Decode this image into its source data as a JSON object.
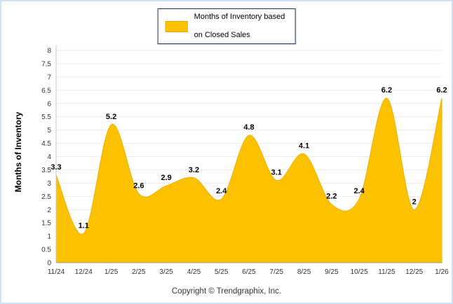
{
  "legend": {
    "line1": "Months of Inventory based",
    "line2": "on Closed Sales"
  },
  "footer": "Copyright © Trendgraphix, Inc.",
  "chart_data": {
    "type": "area",
    "title": "Months of Inventory based on Closed Sales",
    "xlabel": "",
    "ylabel": "Months of Inventory",
    "categories": [
      "11/24",
      "12/24",
      "1/25",
      "2/25",
      "3/25",
      "4/25",
      "5/25",
      "6/25",
      "7/25",
      "8/25",
      "9/25",
      "10/25",
      "11/25",
      "12/25",
      "1/26"
    ],
    "values": [
      3.3,
      1.1,
      5.2,
      2.6,
      2.9,
      3.2,
      2.4,
      4.8,
      3.1,
      4.1,
      2.2,
      2.4,
      6.2,
      2,
      6.2
    ],
    "ylim": [
      0,
      8
    ],
    "ytick_step": 0.5,
    "yticks": [
      "0",
      "0.5",
      "1",
      "1.5",
      "2",
      "2.5",
      "3",
      "3.5",
      "4",
      "4.5",
      "5",
      "5.5",
      "6",
      "6.5",
      "7",
      "7.5",
      "8"
    ],
    "grid": true,
    "legend_position": "top-center",
    "colors": {
      "area_fill": "#fcc200",
      "area_stroke": "#f2ae00",
      "grid_line": "#ececec",
      "axis_line": "#999999",
      "tick_text": "#333333",
      "label_text": "#000000"
    }
  }
}
